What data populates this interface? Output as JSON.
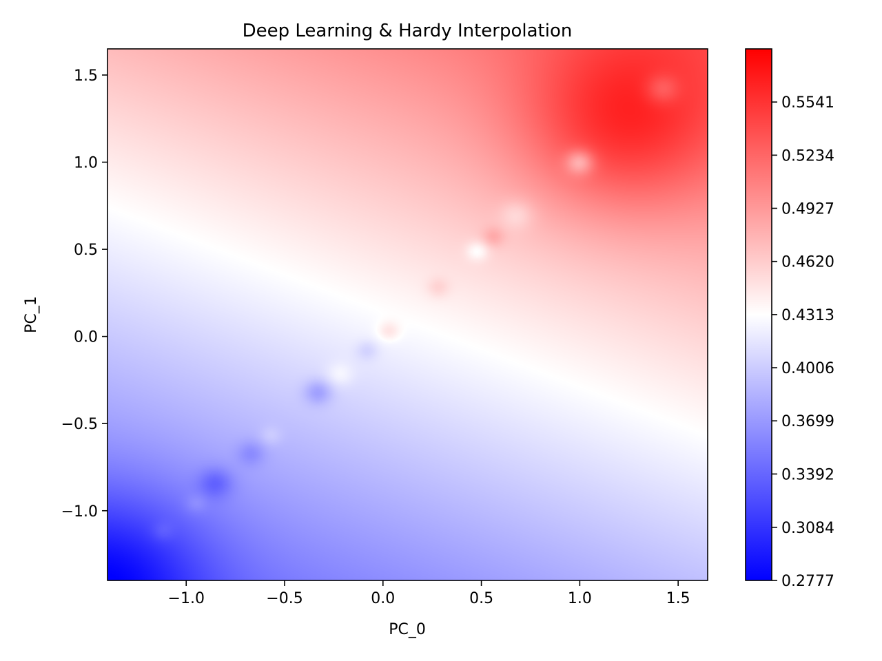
{
  "chart_data": {
    "type": "heatmap",
    "title": "Deep Learning & Hardy Interpolation",
    "xlabel": "PC_0",
    "ylabel": "PC_1",
    "xlim": [
      -1.4,
      1.65
    ],
    "ylim": [
      -1.4,
      1.65
    ],
    "x_ticks": [
      -1.0,
      -0.5,
      0.0,
      0.5,
      1.0,
      1.5
    ],
    "x_tick_labels": [
      "−1.0",
      "−0.5",
      "0.0",
      "0.5",
      "1.0",
      "1.5"
    ],
    "y_ticks": [
      -1.0,
      -0.5,
      0.0,
      0.5,
      1.0,
      1.5
    ],
    "y_tick_labels": [
      "−1.0",
      "−0.5",
      "0.0",
      "0.5",
      "1.0",
      "1.5"
    ],
    "colormap": "bwr",
    "colors": {
      "low": "#0000ff",
      "mid": "#ffffff",
      "high": "#ff0000"
    },
    "value_range": [
      0.2777,
      0.5848
    ],
    "colorbar_ticks": [
      0.2777,
      0.3084,
      0.3392,
      0.3699,
      0.4006,
      0.4313,
      0.462,
      0.4927,
      0.5234,
      0.5541
    ],
    "colorbar_tick_labels": [
      "0.2777",
      "0.3084",
      "0.3392",
      "0.3699",
      "0.4006",
      "0.4313",
      "0.4620",
      "0.4927",
      "0.5234",
      "0.5541"
    ],
    "grid": false,
    "colorbar_placement": "right",
    "field": {
      "base": 0.425,
      "slope_x": 0.045,
      "slope_y": 0.06,
      "peaks": [
        {
          "x": 1.22,
          "y": 1.22,
          "amp": 0.06,
          "sigma": 0.35
        },
        {
          "x": -1.4,
          "y": -1.4,
          "amp": -0.06,
          "sigma": 0.35
        }
      ],
      "local_features": [
        {
          "x": 1.42,
          "y": 1.42,
          "amp": -0.03,
          "sigma": 0.06
        },
        {
          "x": 1.0,
          "y": 1.0,
          "amp": -0.05,
          "sigma": 0.05
        },
        {
          "x": 0.68,
          "y": 0.7,
          "amp": -0.02,
          "sigma": 0.06
        },
        {
          "x": 0.56,
          "y": 0.57,
          "amp": 0.02,
          "sigma": 0.04
        },
        {
          "x": 0.48,
          "y": 0.49,
          "amp": -0.025,
          "sigma": 0.04
        },
        {
          "x": 0.28,
          "y": 0.28,
          "amp": 0.015,
          "sigma": 0.04
        },
        {
          "x": 0.03,
          "y": 0.03,
          "amp": 0.02,
          "sigma": 0.04
        },
        {
          "x": -0.08,
          "y": -0.08,
          "amp": -0.015,
          "sigma": 0.04
        },
        {
          "x": -0.22,
          "y": -0.22,
          "amp": 0.015,
          "sigma": 0.05
        },
        {
          "x": -0.33,
          "y": -0.32,
          "amp": -0.03,
          "sigma": 0.05
        },
        {
          "x": -0.57,
          "y": -0.57,
          "amp": 0.012,
          "sigma": 0.04
        },
        {
          "x": -0.67,
          "y": -0.67,
          "amp": -0.02,
          "sigma": 0.05
        },
        {
          "x": -0.85,
          "y": -0.84,
          "amp": -0.03,
          "sigma": 0.06
        },
        {
          "x": -0.95,
          "y": -0.96,
          "amp": 0.012,
          "sigma": 0.04
        },
        {
          "x": -1.12,
          "y": -1.12,
          "amp": 0.012,
          "sigma": 0.04
        }
      ]
    }
  }
}
